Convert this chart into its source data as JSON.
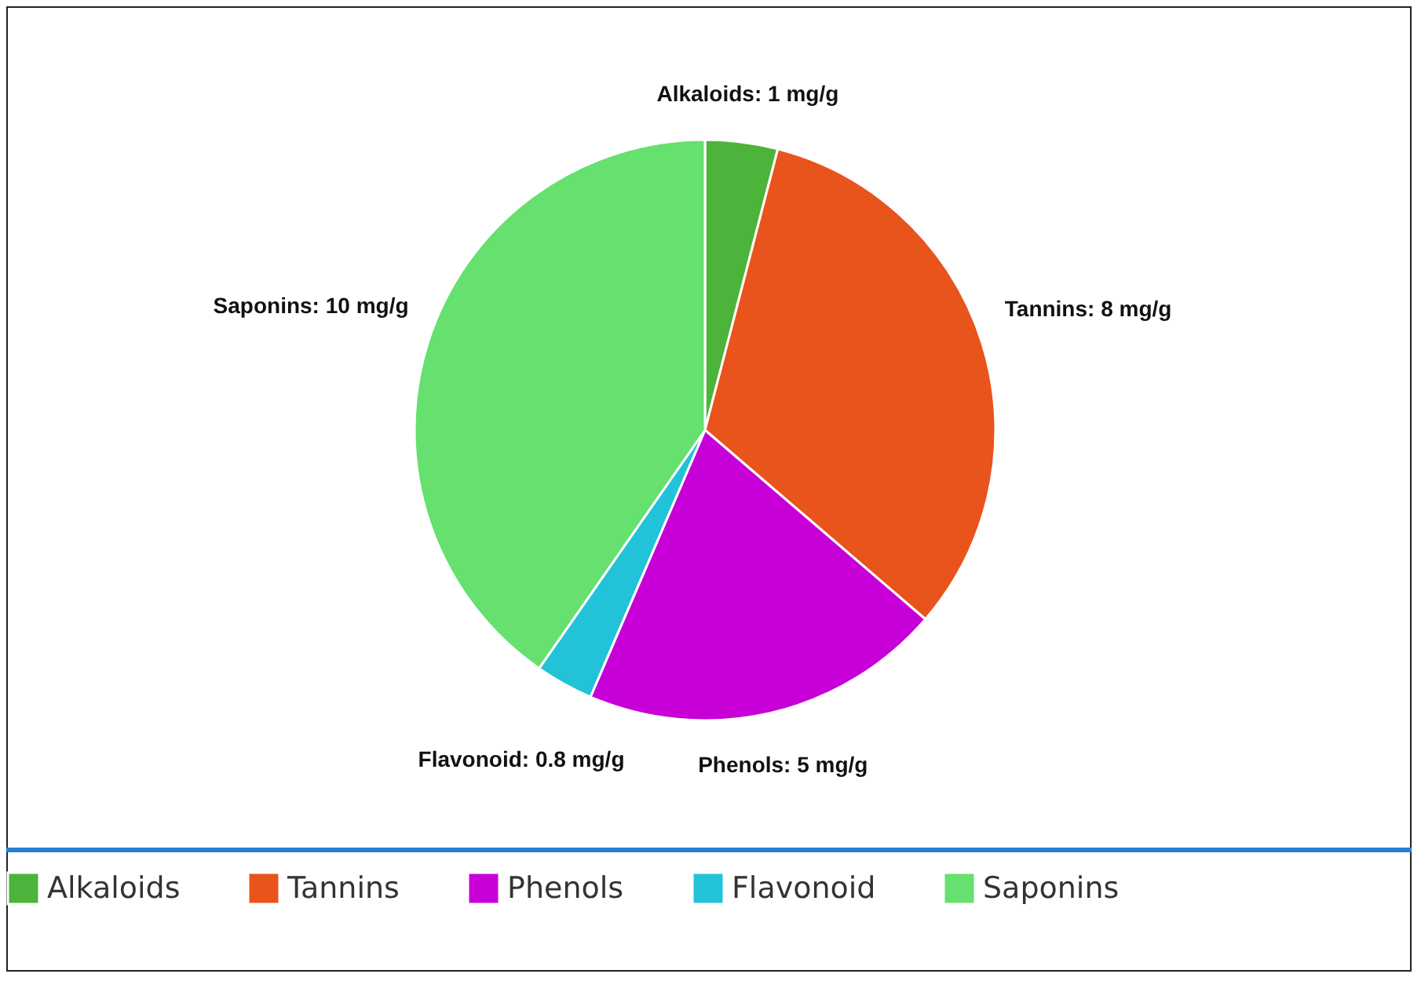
{
  "chart_data": {
    "type": "pie",
    "categories": [
      "Alkaloids",
      "Tannins",
      "Phenols",
      "Flavonoid",
      "Saponins"
    ],
    "values": [
      1,
      8,
      5,
      0.8,
      10
    ],
    "colors": [
      "#4cb43a",
      "#e8541c",
      "#c800d8",
      "#22c3d8",
      "#66e06e"
    ],
    "value_labels": [
      "Alkaloids: 1 mg/g",
      "Tannins: 8 mg/g",
      "Phenols: 5 mg/g",
      "Flavonoid: 0.8 mg/g",
      "Saponins: 10 mg/g"
    ],
    "legend": "bottom"
  }
}
